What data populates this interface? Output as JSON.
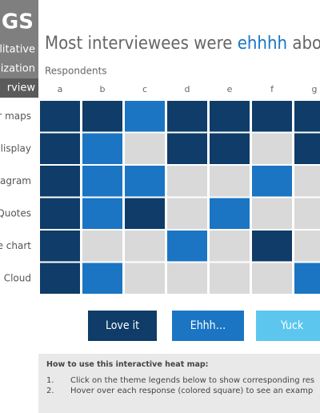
{
  "sidebar": {
    "heading": "IGS",
    "lines": [
      "litative",
      "ization"
    ],
    "highlight": "rview"
  },
  "title": {
    "before": "Most interviewees were ",
    "emphasis": "ehhhh",
    "after": " about Ve"
  },
  "heatmap": {
    "axis_label": "Respondents",
    "columns": [
      "a",
      "b",
      "c",
      "d",
      "e",
      "f",
      "g"
    ],
    "rows": [
      "r maps",
      "lisplay",
      "agram",
      "Quotes",
      "e chart",
      "Cloud"
    ],
    "cells": [
      [
        0,
        0,
        1,
        0,
        0,
        0,
        0
      ],
      [
        0,
        1,
        null,
        0,
        0,
        null,
        0
      ],
      [
        0,
        1,
        1,
        null,
        null,
        1,
        null
      ],
      [
        0,
        1,
        0,
        null,
        1,
        null,
        null
      ],
      [
        0,
        null,
        null,
        1,
        null,
        0,
        null
      ],
      [
        0,
        1,
        null,
        null,
        null,
        null,
        1
      ]
    ]
  },
  "legend": [
    {
      "label": "Love it",
      "color": "#0f3c68"
    },
    {
      "label": "Ehhh…",
      "color": "#1b75c3"
    },
    {
      "label": "Yuck",
      "color": "#5cc6ef"
    }
  ],
  "empty_color": "#d9d9d9",
  "help": {
    "title": "How to use this interactive heat map:",
    "steps": [
      {
        "number": "1.",
        "text": "Click on the theme legends below to show corresponding res"
      },
      {
        "number": "2.",
        "text": "Hover over each response (colored square) to see an examp"
      }
    ]
  }
}
